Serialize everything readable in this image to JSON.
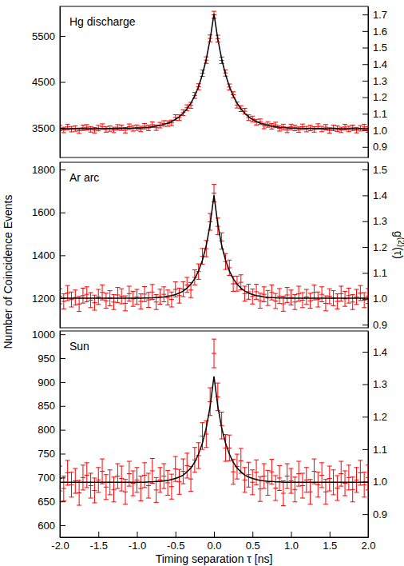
{
  "chart_data": [
    {
      "type": "scatter",
      "title": "Hg discharge",
      "x": [
        -2,
        -1.95,
        -1.9,
        -1.85,
        -1.8,
        -1.75,
        -1.7,
        -1.65,
        -1.6,
        -1.55,
        -1.5,
        -1.45,
        -1.4,
        -1.35,
        -1.3,
        -1.25,
        -1.2,
        -1.15,
        -1.1,
        -1.05,
        -1,
        -0.95,
        -0.9,
        -0.85,
        -0.8,
        -0.75,
        -0.7,
        -0.65,
        -0.6,
        -0.55,
        -0.5,
        -0.45,
        -0.4,
        -0.35,
        -0.3,
        -0.25,
        -0.2,
        -0.15,
        -0.1,
        -0.05,
        0,
        0.05,
        0.1,
        0.15,
        0.2,
        0.25,
        0.3,
        0.35,
        0.4,
        0.45,
        0.5,
        0.55,
        0.6,
        0.65,
        0.7,
        0.75,
        0.8,
        0.85,
        0.9,
        0.95,
        1,
        1.05,
        1.1,
        1.15,
        1.2,
        1.25,
        1.3,
        1.35,
        1.4,
        1.45,
        1.5,
        1.55,
        1.6,
        1.65,
        1.7,
        1.75,
        1.8,
        1.85,
        1.9,
        1.95,
        2
      ],
      "xlim": [
        -2,
        2
      ],
      "ylim": [
        2857,
        6143
      ],
      "yticks": [
        3500,
        4500,
        5500
      ],
      "y2lim": [
        0.836,
        1.749
      ],
      "y2ticks": [
        0.9,
        {
          "value": 1.0,
          "label": "1.0"
        },
        1.1,
        1.2,
        1.3,
        1.4,
        1.5,
        1.6,
        1.7
      ],
      "series": [
        {
          "type": "scatter",
          "marker": "errorbar",
          "color": "#ff0000",
          "values": [
            3496,
            3456,
            3522,
            3472,
            3487,
            3438,
            3503,
            3513,
            3469,
            3449,
            3495,
            3530,
            3466,
            3486,
            3457,
            3513,
            3504,
            3450,
            3527,
            3489,
            3507,
            3477,
            3537,
            3500,
            3570,
            3505,
            3560,
            3597,
            3595,
            3610,
            3725,
            3723,
            3833,
            3940,
            3992,
            4207,
            4395,
            4690,
            4975,
            5447,
            5960,
            5442,
            4970,
            4695,
            4390,
            4222,
            3997,
            3920,
            3863,
            3723,
            3695,
            3625,
            3635,
            3542,
            3575,
            3535,
            3565,
            3490,
            3522,
            3457,
            3522,
            3499,
            3462,
            3525,
            3474,
            3498,
            3467,
            3531,
            3476,
            3515,
            3445,
            3499,
            3484,
            3458,
            3518,
            3478,
            3502,
            3452,
            3492,
            3521,
            3466
          ],
          "errors": [
            59,
            59,
            59,
            59,
            59,
            59,
            59,
            59,
            59,
            59,
            59,
            59,
            59,
            59,
            59,
            59,
            59,
            59,
            59,
            59,
            59,
            59,
            59,
            59,
            59,
            59,
            60,
            60,
            60,
            60,
            61,
            61,
            62,
            63,
            64,
            65,
            66,
            68,
            71,
            74,
            77,
            74,
            71,
            68,
            66,
            65,
            64,
            63,
            62,
            61,
            61,
            60,
            60,
            60,
            60,
            59,
            59,
            59,
            59,
            59,
            59,
            59,
            59,
            59,
            59,
            59,
            59,
            59,
            59,
            59,
            59,
            59,
            59,
            59,
            59,
            59,
            59,
            59,
            59,
            59,
            59
          ]
        },
        {
          "type": "line",
          "line_style": "solid",
          "color": "#000000",
          "values": [
            3481,
            3481,
            3482,
            3482,
            3482,
            3483,
            3483,
            3483,
            3484,
            3484,
            3485,
            3485,
            3486,
            3486,
            3487,
            3488,
            3489,
            3490,
            3492,
            3494,
            3497,
            3502,
            3507,
            3515,
            3525,
            3540,
            3555,
            3577,
            3605,
            3640,
            3685,
            3743,
            3818,
            3915,
            4037,
            4197,
            4400,
            4660,
            5000,
            5427,
            5980,
            5427,
            5000,
            4660,
            4400,
            4197,
            4037,
            3915,
            3818,
            3743,
            3685,
            3640,
            3605,
            3577,
            3555,
            3540,
            3525,
            3515,
            3507,
            3502,
            3497,
            3494,
            3492,
            3490,
            3489,
            3488,
            3487,
            3486,
            3486,
            3485,
            3485,
            3484,
            3484,
            3483,
            3483,
            3483,
            3482,
            3482,
            3482,
            3481,
            3481
          ]
        }
      ]
    },
    {
      "type": "scatter",
      "title": "Ar arc",
      "ylabel": "Number of Coincidence Events",
      "y2label": "g(2)(τ)",
      "x": [
        -2,
        -1.95,
        -1.9,
        -1.85,
        -1.8,
        -1.75,
        -1.7,
        -1.65,
        -1.6,
        -1.55,
        -1.5,
        -1.45,
        -1.4,
        -1.35,
        -1.3,
        -1.25,
        -1.2,
        -1.15,
        -1.1,
        -1.05,
        -1,
        -0.95,
        -0.9,
        -0.85,
        -0.8,
        -0.75,
        -0.7,
        -0.65,
        -0.6,
        -0.55,
        -0.5,
        -0.45,
        -0.4,
        -0.35,
        -0.3,
        -0.25,
        -0.2,
        -0.15,
        -0.1,
        -0.05,
        0,
        0.05,
        0.1,
        0.15,
        0.2,
        0.25,
        0.3,
        0.35,
        0.4,
        0.45,
        0.5,
        0.55,
        0.6,
        0.65,
        0.7,
        0.75,
        0.8,
        0.85,
        0.9,
        0.95,
        1,
        1.05,
        1.1,
        1.15,
        1.2,
        1.25,
        1.3,
        1.35,
        1.4,
        1.45,
        1.5,
        1.55,
        1.6,
        1.65,
        1.7,
        1.75,
        1.8,
        1.85,
        1.9,
        1.95,
        2
      ],
      "xlim": [
        -2,
        2
      ],
      "ylim": [
        1062,
        1834
      ],
      "yticks": [
        1200,
        1400,
        1600,
        1800
      ],
      "y2lim": [
        0.888,
        1.528
      ],
      "y2ticks": [
        0.9,
        {
          "value": 1.0,
          "label": "1.0"
        },
        1.1,
        1.2,
        1.3,
        1.4,
        1.5
      ],
      "series": [
        {
          "type": "scatter",
          "marker": "errorbar",
          "color": "#ff0000",
          "values": [
            1209,
            1185,
            1224,
            1194,
            1203,
            1173,
            1212,
            1218,
            1191,
            1179,
            1206,
            1227,
            1188,
            1200,
            1182,
            1215,
            1209,
            1176,
            1221,
            1197,
            1206,
            1185,
            1219,
            1192,
            1229,
            1182,
            1207,
            1218,
            1203,
            1194,
            1241,
            1212,
            1242,
            1262,
            1238,
            1297,
            1324,
            1395,
            1431,
            1556,
            1690,
            1535,
            1467,
            1371,
            1342,
            1267,
            1268,
            1274,
            1221,
            1230,
            1208,
            1230,
            1188,
            1218,
            1201,
            1227,
            1187,
            1210,
            1174,
            1215,
            1203,
            1182,
            1221,
            1191,
            1206,
            1188,
            1227,
            1194,
            1218,
            1176,
            1209,
            1200,
            1185,
            1221,
            1197,
            1212,
            1182,
            1206,
            1224,
            1191,
            1210
          ],
          "errors": [
            35,
            35,
            35,
            35,
            35,
            35,
            35,
            35,
            35,
            35,
            35,
            35,
            35,
            35,
            35,
            35,
            35,
            35,
            35,
            35,
            35,
            35,
            35,
            35,
            35,
            35,
            35,
            35,
            35,
            35,
            35,
            35,
            35,
            35,
            35,
            35,
            36,
            37,
            38,
            39,
            41,
            39,
            38,
            37,
            36,
            35,
            35,
            35,
            35,
            35,
            35,
            35,
            35,
            35,
            35,
            35,
            35,
            35,
            35,
            35,
            35,
            35,
            35,
            35,
            35,
            35,
            35,
            35,
            35,
            35,
            35,
            35,
            35,
            35,
            35,
            35,
            35,
            35,
            35,
            35,
            35
          ]
        },
        {
          "type": "line",
          "line_style": "solid",
          "color": "#000000",
          "values": [
            1200,
            1200,
            1200,
            1200,
            1200,
            1200,
            1200,
            1200,
            1200,
            1200,
            1200,
            1200,
            1200,
            1200,
            1200,
            1200,
            1200,
            1200,
            1200,
            1200,
            1200,
            1200,
            1201,
            1201,
            1202,
            1203,
            1204,
            1206,
            1209,
            1212,
            1217,
            1224,
            1233,
            1247,
            1265,
            1291,
            1327,
            1377,
            1446,
            1544,
            1680,
            1544,
            1446,
            1377,
            1327,
            1291,
            1265,
            1247,
            1233,
            1224,
            1217,
            1212,
            1209,
            1206,
            1204,
            1203,
            1202,
            1201,
            1201,
            1200,
            1200,
            1200,
            1200,
            1200,
            1200,
            1200,
            1200,
            1200,
            1200,
            1200,
            1200,
            1200,
            1200,
            1200,
            1200,
            1200,
            1200,
            1200,
            1200,
            1200,
            1200
          ]
        }
      ]
    },
    {
      "type": "scatter",
      "title": "Sun",
      "xlabel": "Timing separation τ [ns]",
      "x": [
        -2,
        -1.95,
        -1.9,
        -1.85,
        -1.8,
        -1.75,
        -1.7,
        -1.65,
        -1.6,
        -1.55,
        -1.5,
        -1.45,
        -1.4,
        -1.35,
        -1.3,
        -1.25,
        -1.2,
        -1.15,
        -1.1,
        -1.05,
        -1,
        -0.95,
        -0.9,
        -0.85,
        -0.8,
        -0.75,
        -0.7,
        -0.65,
        -0.6,
        -0.55,
        -0.5,
        -0.45,
        -0.4,
        -0.35,
        -0.3,
        -0.25,
        -0.2,
        -0.15,
        -0.1,
        -0.05,
        0,
        0.05,
        0.1,
        0.15,
        0.2,
        0.25,
        0.3,
        0.35,
        0.4,
        0.45,
        0.5,
        0.55,
        0.6,
        0.65,
        0.7,
        0.75,
        0.8,
        0.85,
        0.9,
        0.95,
        1,
        1.05,
        1.1,
        1.15,
        1.2,
        1.25,
        1.3,
        1.35,
        1.4,
        1.45,
        1.5,
        1.55,
        1.6,
        1.65,
        1.7,
        1.75,
        1.8,
        1.85,
        1.9,
        1.95,
        2
      ],
      "xlim": [
        -2,
        2
      ],
      "xticks": [
        {
          "value": -2,
          "label": "-2.0"
        },
        -1.5,
        {
          "value": -1,
          "label": "-1.0"
        },
        -0.5,
        {
          "value": 0,
          "label": "0.0"
        },
        0.5,
        {
          "value": 1,
          "label": "1.0"
        },
        1.5,
        {
          "value": 2,
          "label": "2.0"
        }
      ],
      "ylim": [
        575,
        1007
      ],
      "yticks": [
        600,
        650,
        700,
        750,
        800,
        850,
        900,
        950,
        1000
      ],
      "y2lim": [
        0.829,
        1.464
      ],
      "y2ticks": [
        0.9,
        {
          "value": 1.0,
          "label": "1.0"
        },
        1.1,
        1.2,
        1.3,
        1.4
      ],
      "series": [
        {
          "type": "scatter",
          "marker": "errorbar",
          "color": "#ff0000",
          "values": [
            698,
            677,
            710,
            685,
            693,
            668,
            700,
            705,
            683,
            673,
            695,
            713,
            680,
            690,
            675,
            703,
            698,
            670,
            708,
            688,
            695,
            677,
            705,
            683,
            714,
            674,
            695,
            703,
            689,
            681,
            718,
            691,
            713,
            725,
            697,
            737,
            746,
            787,
            791,
            859,
            960,
            869,
            809,
            762,
            762,
            712,
            723,
            735,
            695,
            706,
            690,
            711,
            676,
            703,
            689,
            712,
            678,
            699,
            667,
            703,
            693,
            675,
            708,
            683,
            695,
            670,
            713,
            685,
            705,
            670,
            698,
            690,
            678,
            708,
            688,
            700,
            675,
            695,
            710,
            685,
            700
          ],
          "errors": [
            26,
            26,
            26,
            26,
            26,
            26,
            26,
            26,
            26,
            26,
            26,
            26,
            26,
            26,
            26,
            26,
            26,
            26,
            26,
            26,
            26,
            26,
            26,
            26,
            26,
            26,
            26,
            26,
            26,
            26,
            26,
            26,
            26,
            26,
            26,
            26,
            27,
            28,
            28,
            29,
            30,
            29,
            28,
            28,
            27,
            26,
            26,
            26,
            26,
            26,
            26,
            26,
            26,
            26,
            26,
            26,
            26,
            26,
            26,
            26,
            26,
            26,
            26,
            26,
            26,
            26,
            26,
            26,
            26,
            26,
            26,
            26,
            26,
            26,
            26,
            26,
            26,
            26,
            26,
            26,
            26
          ]
        },
        {
          "type": "line",
          "line_style": "solid",
          "color": "#000000",
          "values": [
            690,
            690,
            690,
            690,
            690,
            690,
            690,
            690,
            690,
            690,
            690,
            690,
            690,
            690,
            690,
            690,
            690,
            690,
            690,
            690,
            690,
            690,
            690,
            691,
            691,
            692,
            692,
            693,
            694,
            696,
            698,
            701,
            705,
            712,
            720,
            732,
            749,
            772,
            804,
            849,
            912,
            849,
            804,
            772,
            749,
            732,
            720,
            712,
            705,
            701,
            698,
            696,
            694,
            693,
            692,
            692,
            691,
            691,
            690,
            690,
            690,
            690,
            690,
            690,
            690,
            690,
            690,
            690,
            690,
            690,
            690,
            690,
            690,
            690,
            690,
            690,
            690,
            690,
            690,
            690,
            690
          ]
        }
      ]
    }
  ]
}
